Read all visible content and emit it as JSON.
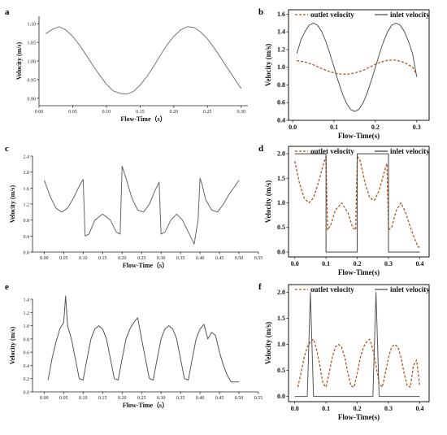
{
  "chart_data": [
    {
      "panel": "a",
      "type": "line",
      "xlabel": "Flow-Time（s）",
      "ylabel": "Velocity (m/s)",
      "xlim": [
        0,
        0.31
      ],
      "ylim": [
        0.88,
        1.12
      ],
      "xticks": [
        "0.00",
        "0.05",
        "0.10",
        "0.15",
        "0.20",
        "0.25",
        "0.30"
      ],
      "yticks": [
        "0.90",
        "0.95",
        "1.00",
        "1.05",
        "1.10"
      ],
      "series": [
        {
          "color": "#777777",
          "dash": "",
          "x": [
            0.01,
            0.02,
            0.03,
            0.04,
            0.05,
            0.06,
            0.07,
            0.08,
            0.09,
            0.1,
            0.11,
            0.12,
            0.13,
            0.14,
            0.15,
            0.16,
            0.17,
            0.18,
            0.19,
            0.2,
            0.21,
            0.22,
            0.23,
            0.24,
            0.25,
            0.26,
            0.27,
            0.28,
            0.29,
            0.3
          ],
          "y": [
            1.073,
            1.085,
            1.092,
            1.083,
            1.066,
            1.043,
            1.016,
            0.988,
            0.962,
            0.938,
            0.92,
            0.913,
            0.911,
            0.918,
            0.935,
            0.958,
            0.985,
            1.015,
            1.043,
            1.066,
            1.083,
            1.092,
            1.09,
            1.078,
            1.059,
            1.035,
            1.008,
            0.98,
            0.953,
            0.926
          ]
        }
      ]
    },
    {
      "panel": "b",
      "type": "line",
      "xlabel": "Flow-Time(s)",
      "ylabel": "Velocity (m/s)",
      "xlim": [
        -0.01,
        0.33
      ],
      "ylim": [
        0.4,
        1.65
      ],
      "xticks": [
        "0.0",
        "0.1",
        "0.2",
        "0.3"
      ],
      "yticks": [
        "0.4",
        "0.6",
        "0.8",
        "1.0",
        "1.2",
        "1.4",
        "1.6"
      ],
      "legend": [
        "outlet velocity",
        "inlet velocity"
      ],
      "series": [
        {
          "name": "outlet velocity",
          "color": "#b5541c",
          "dash": "3,2",
          "x": [
            0.01,
            0.03,
            0.05,
            0.07,
            0.09,
            0.11,
            0.13,
            0.15,
            0.17,
            0.19,
            0.21,
            0.23,
            0.25,
            0.27,
            0.29,
            0.3
          ],
          "y": [
            1.075,
            1.06,
            1.028,
            0.985,
            0.95,
            0.925,
            0.92,
            0.935,
            0.965,
            1.01,
            1.055,
            1.08,
            1.08,
            1.055,
            1.0,
            0.92
          ]
        },
        {
          "name": "inlet velocity",
          "color": "#555555",
          "dash": "",
          "x": [
            0.01,
            0.02,
            0.03,
            0.04,
            0.05,
            0.06,
            0.07,
            0.08,
            0.09,
            0.1,
            0.11,
            0.12,
            0.13,
            0.14,
            0.15,
            0.16,
            0.17,
            0.18,
            0.19,
            0.2,
            0.21,
            0.22,
            0.23,
            0.24,
            0.25,
            0.26,
            0.27,
            0.28,
            0.29,
            0.3
          ],
          "y": [
            1.155,
            1.309,
            1.406,
            1.476,
            1.5,
            1.476,
            1.406,
            1.294,
            1.155,
            1.0,
            0.845,
            0.706,
            0.594,
            0.524,
            0.5,
            0.524,
            0.594,
            0.706,
            0.845,
            1.0,
            1.155,
            1.294,
            1.406,
            1.476,
            1.5,
            1.476,
            1.406,
            1.294,
            1.155,
            0.89
          ]
        }
      ]
    },
    {
      "panel": "c",
      "type": "line",
      "xlabel": "Flow-Time（s）",
      "ylabel": "Velocity (m/s)",
      "xlim": [
        -0.03,
        0.55
      ],
      "ylim": [
        0.0,
        2.4
      ],
      "xticks": [
        "0.00",
        "0.05",
        "0.10",
        "0.15",
        "0.20",
        "0.25",
        "0.30",
        "0.35",
        "0.40",
        "0.45",
        "0.50",
        "0.55"
      ],
      "yticks": [
        "0.0",
        "0.4",
        "0.8",
        "1.2",
        "1.6",
        "2.0",
        "2.4"
      ],
      "series": [
        {
          "color": "#666666",
          "dash": "",
          "x": [
            0.0,
            0.015,
            0.03,
            0.045,
            0.06,
            0.075,
            0.09,
            0.1,
            0.105,
            0.115,
            0.13,
            0.15,
            0.17,
            0.185,
            0.195,
            0.2,
            0.21,
            0.225,
            0.24,
            0.255,
            0.27,
            0.285,
            0.295,
            0.3,
            0.31,
            0.325,
            0.34,
            0.355,
            0.37,
            0.385,
            0.395,
            0.4,
            0.405,
            0.415,
            0.43,
            0.445,
            0.46,
            0.475,
            0.49,
            0.5
          ],
          "y": [
            1.8,
            1.4,
            1.1,
            1.0,
            1.1,
            1.35,
            1.65,
            1.82,
            0.4,
            0.45,
            0.8,
            0.95,
            0.8,
            0.5,
            0.45,
            2.15,
            1.85,
            1.35,
            1.05,
            1.0,
            1.2,
            1.55,
            1.75,
            0.45,
            0.5,
            0.8,
            0.95,
            0.8,
            0.5,
            0.2,
            0.8,
            1.85,
            1.7,
            1.3,
            1.05,
            1.0,
            1.2,
            1.45,
            1.65,
            1.8
          ]
        }
      ]
    },
    {
      "panel": "d",
      "type": "line",
      "xlabel": "Flow-Time(s)",
      "ylabel": "Velocity (m/s)",
      "xlim": [
        -0.02,
        0.43
      ],
      "ylim": [
        -0.1,
        2.15
      ],
      "xticks": [
        "0.0",
        "0.1",
        "0.2",
        "0.3",
        "0.4"
      ],
      "yticks": [
        "0.0",
        "0.5",
        "1.0",
        "1.5",
        "2.0"
      ],
      "legend": [
        "outlet velocity",
        "inlet velocity"
      ],
      "series": [
        {
          "name": "outlet velocity",
          "color": "#b5541c",
          "dash": "3,2",
          "x": [
            0.0,
            0.015,
            0.03,
            0.045,
            0.06,
            0.075,
            0.09,
            0.1,
            0.105,
            0.115,
            0.13,
            0.15,
            0.17,
            0.185,
            0.195,
            0.2,
            0.21,
            0.225,
            0.24,
            0.255,
            0.27,
            0.285,
            0.295,
            0.3,
            0.31,
            0.325,
            0.34,
            0.355,
            0.37,
            0.385,
            0.395,
            0.4
          ],
          "y": [
            1.85,
            1.4,
            1.1,
            1.0,
            1.1,
            1.4,
            1.75,
            1.95,
            0.45,
            0.55,
            0.85,
            1.0,
            0.8,
            0.5,
            0.45,
            1.95,
            1.85,
            1.4,
            1.1,
            1.05,
            1.25,
            1.6,
            1.8,
            0.45,
            0.5,
            0.85,
            1.0,
            0.8,
            0.5,
            0.25,
            0.1,
            0.1
          ]
        },
        {
          "name": "inlet velocity",
          "color": "#444444",
          "dash": "",
          "x": [
            0.0,
            0.1,
            0.1,
            0.2,
            0.2,
            0.3,
            0.3,
            0.4
          ],
          "y": [
            2.0,
            2.0,
            0.0,
            0.0,
            2.0,
            2.0,
            0.0,
            0.0
          ]
        }
      ]
    },
    {
      "panel": "e",
      "type": "line",
      "xlabel": "Flow-Time（s）",
      "ylabel": "Velocity (m/s)",
      "xlim": [
        -0.03,
        0.55
      ],
      "ylim": [
        0.0,
        1.4
      ],
      "xticks": [
        "0.00",
        "0.05",
        "0.10",
        "0.15",
        "0.20",
        "0.25",
        "0.30",
        "0.35",
        "0.40",
        "0.45",
        "0.50",
        "0.55"
      ],
      "yticks": [
        "0.0",
        "0.2",
        "0.4",
        "0.6",
        "0.8",
        "1.0",
        "1.2",
        "1.4"
      ],
      "series": [
        {
          "color": "#555555",
          "dash": "",
          "x": [
            0.01,
            0.02,
            0.03,
            0.04,
            0.05,
            0.055,
            0.06,
            0.07,
            0.08,
            0.09,
            0.1,
            0.11,
            0.12,
            0.13,
            0.14,
            0.15,
            0.16,
            0.17,
            0.18,
            0.19,
            0.2,
            0.21,
            0.22,
            0.23,
            0.24,
            0.25,
            0.26,
            0.27,
            0.28,
            0.29,
            0.3,
            0.31,
            0.32,
            0.33,
            0.34,
            0.35,
            0.36,
            0.37,
            0.38,
            0.39,
            0.4,
            0.41,
            0.42,
            0.43,
            0.44,
            0.45,
            0.46,
            0.47,
            0.48,
            0.49,
            0.5
          ],
          "y": [
            0.18,
            0.5,
            0.75,
            0.95,
            1.05,
            1.45,
            1.0,
            0.8,
            0.5,
            0.2,
            0.18,
            0.5,
            0.8,
            0.95,
            1.0,
            0.95,
            0.8,
            0.5,
            0.2,
            0.18,
            0.5,
            0.8,
            0.95,
            1.05,
            1.12,
            0.8,
            0.5,
            0.2,
            0.18,
            0.5,
            0.8,
            0.95,
            1.0,
            0.95,
            0.8,
            0.5,
            0.2,
            0.18,
            0.5,
            0.8,
            0.95,
            1.02,
            0.8,
            0.9,
            0.85,
            0.6,
            0.4,
            0.25,
            0.15,
            0.15,
            0.15
          ]
        }
      ]
    },
    {
      "panel": "f",
      "type": "line",
      "xlabel": "Flow-Time(s)",
      "ylabel": "Velocity (m/s)",
      "xlim": [
        -0.02,
        0.43
      ],
      "ylim": [
        -0.1,
        2.15
      ],
      "xticks": [
        "0.0",
        "0.1",
        "0.2",
        "0.3",
        "0.4"
      ],
      "yticks": [
        "0.0",
        "0.5",
        "1.0",
        "1.5",
        "2.0"
      ],
      "legend": [
        "outlet velocity",
        "inlet velocity"
      ],
      "series": [
        {
          "name": "outlet velocity",
          "color": "#b5541c",
          "dash": "3,2",
          "x": [
            0.01,
            0.02,
            0.03,
            0.04,
            0.05,
            0.06,
            0.07,
            0.08,
            0.09,
            0.1,
            0.11,
            0.12,
            0.13,
            0.14,
            0.15,
            0.16,
            0.17,
            0.18,
            0.19,
            0.2,
            0.21,
            0.22,
            0.23,
            0.24,
            0.25,
            0.26,
            0.27,
            0.28,
            0.29,
            0.3,
            0.31,
            0.32,
            0.33,
            0.34,
            0.35,
            0.36,
            0.37,
            0.38,
            0.39,
            0.4
          ],
          "y": [
            0.18,
            0.45,
            0.75,
            0.95,
            1.05,
            1.1,
            0.9,
            0.6,
            0.25,
            0.18,
            0.45,
            0.75,
            0.95,
            1.0,
            0.95,
            0.75,
            0.45,
            0.2,
            0.18,
            0.45,
            0.75,
            0.95,
            1.05,
            1.1,
            0.9,
            0.6,
            0.25,
            0.18,
            0.45,
            0.75,
            0.95,
            1.0,
            0.95,
            0.75,
            0.45,
            0.2,
            0.18,
            0.6,
            0.7,
            0.2
          ]
        },
        {
          "name": "inlet velocity",
          "color": "#555555",
          "dash": "",
          "x": [
            0.0,
            0.04,
            0.05,
            0.06,
            0.25,
            0.26,
            0.27,
            0.4
          ],
          "y": [
            0.0,
            0.0,
            2.0,
            0.0,
            0.0,
            2.0,
            0.0,
            0.0
          ]
        }
      ]
    }
  ]
}
